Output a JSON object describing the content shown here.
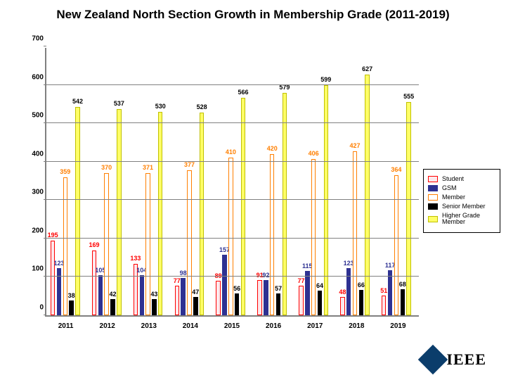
{
  "title": "New Zealand North Section Growth in Membership Grade (2011-2019)",
  "chart": {
    "type": "bar",
    "ylim": [
      0,
      700
    ],
    "ytick_step": 100,
    "yticks": [
      0,
      100,
      200,
      300,
      400,
      500,
      600,
      700
    ],
    "categories": [
      "2011",
      "2012",
      "2013",
      "2014",
      "2015",
      "2016",
      "2017",
      "2018",
      "2019"
    ],
    "series": [
      {
        "name": "Student",
        "fill": "#fce8ec",
        "border": "#ff0000",
        "label_color": "#ff0000"
      },
      {
        "name": "GSM",
        "fill": "#2e3192",
        "border": "#2e3192",
        "label_color": "#2e3192"
      },
      {
        "name": "Member",
        "fill": "#ffffff",
        "border": "#ff7f00",
        "label_color": "#ff7f00"
      },
      {
        "name": "Senior Member",
        "fill": "#000000",
        "border": "#000000",
        "label_color": "#000000"
      },
      {
        "name": "Higher Grade Member",
        "fill": "#ffff66",
        "border": "#c0c000",
        "label_color": "#000000"
      }
    ],
    "values": [
      [
        195,
        123,
        359,
        38,
        542
      ],
      [
        169,
        105,
        370,
        42,
        537
      ],
      [
        133,
        104,
        371,
        43,
        530
      ],
      [
        77,
        98,
        377,
        47,
        528
      ],
      [
        89,
        157,
        410,
        56,
        566
      ],
      [
        91,
        92,
        420,
        57,
        579
      ],
      [
        77,
        115,
        406,
        64,
        599
      ],
      [
        48,
        123,
        427,
        66,
        627
      ],
      [
        51,
        117,
        364,
        68,
        555
      ]
    ],
    "grid_color": "#808080",
    "background_color": "#ffffff",
    "label_fontsize": 9
  },
  "logo": {
    "text": "IEEE",
    "diamond_color": "#0b3d6b"
  }
}
